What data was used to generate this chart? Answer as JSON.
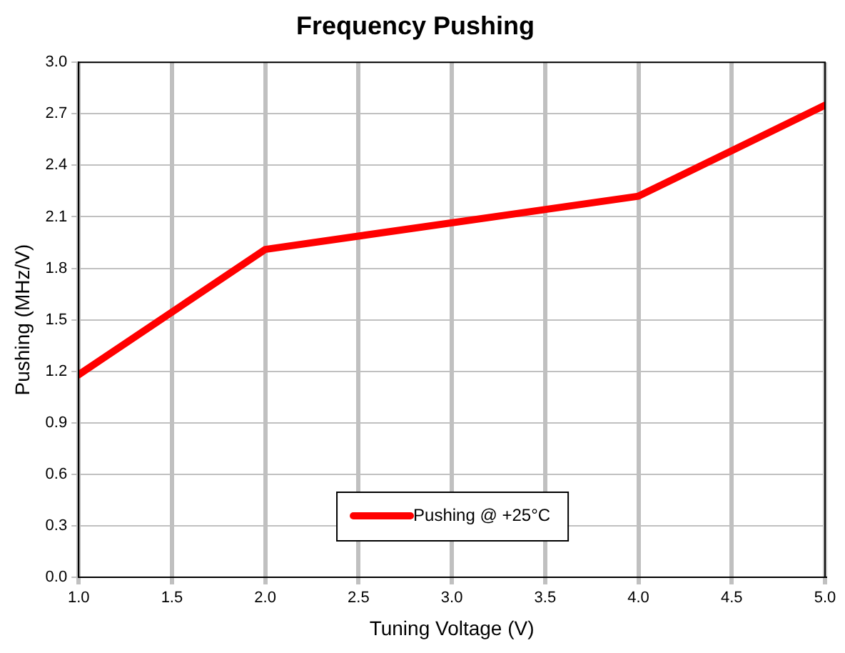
{
  "chart_data": {
    "type": "line",
    "title": "Frequency Pushing",
    "xlabel": "Tuning Voltage (V)",
    "ylabel": "Pushing (MHz/V)",
    "x": [
      1.0,
      2.0,
      4.0,
      5.0
    ],
    "series": [
      {
        "name": "Pushing @ +25°C",
        "color": "#ff0000",
        "values": [
          1.18,
          1.91,
          2.22,
          2.75
        ]
      }
    ],
    "xlim": [
      1.0,
      5.0
    ],
    "xticks": [
      {
        "value": 1,
        "label": "1.0"
      },
      {
        "value": 1.5,
        "label": "1.5"
      },
      {
        "value": 2,
        "label": "2.0"
      },
      {
        "value": 2.5,
        "label": "2.5"
      },
      {
        "value": 3,
        "label": "3.0"
      },
      {
        "value": 3.5,
        "label": "3.5"
      },
      {
        "value": 4,
        "label": "4.0"
      },
      {
        "value": 4.5,
        "label": "4.5"
      },
      {
        "value": 5,
        "label": "5.0"
      }
    ],
    "ylim": [
      0,
      3.0
    ],
    "yticks": [
      {
        "value": 0,
        "label": "0.0"
      },
      {
        "value": 0.3,
        "label": "0.3"
      },
      {
        "value": 0.6,
        "label": "0.6"
      },
      {
        "value": 0.9,
        "label": "0.9"
      },
      {
        "value": 1.2,
        "label": "1.2"
      },
      {
        "value": 1.5,
        "label": "1.5"
      },
      {
        "value": 1.8,
        "label": "1.8"
      },
      {
        "value": 2.1,
        "label": "2.1"
      },
      {
        "value": 2.4,
        "label": "2.4"
      },
      {
        "value": 2.7,
        "label": "2.7"
      },
      {
        "value": 3.0,
        "label": "3.0"
      }
    ],
    "grid": true,
    "legend": "bottom",
    "marker": "none",
    "line_style": "solid"
  }
}
